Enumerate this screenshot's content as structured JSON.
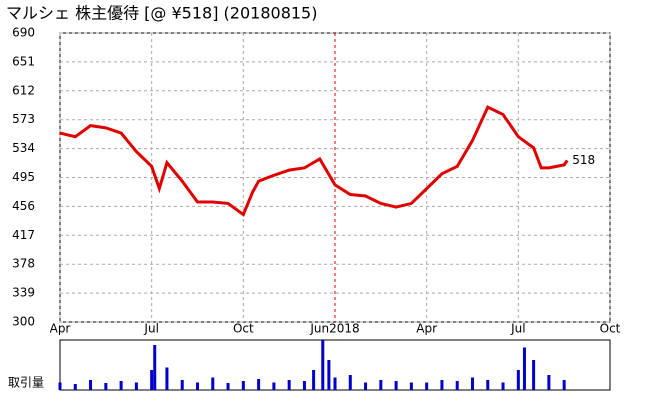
{
  "chart_data": {
    "type": "line",
    "title": "マルシェ 株主優待 [@ ¥518] (20180815)",
    "xlim": [
      0,
      18
    ],
    "xticks": [
      {
        "value": 0,
        "label": "Apr"
      },
      {
        "value": 3,
        "label": "Jul"
      },
      {
        "value": 6,
        "label": "Oct"
      },
      {
        "value": 9,
        "label": "Jun2018"
      },
      {
        "value": 12,
        "label": "Apr"
      },
      {
        "value": 15,
        "label": "Jul"
      },
      {
        "value": 18,
        "label": "Oct"
      }
    ],
    "ylim": [
      300,
      690
    ],
    "yticks": [
      300,
      339,
      378,
      417,
      456,
      495,
      534,
      573,
      612,
      651,
      690
    ],
    "grid": true,
    "series": [
      {
        "color": "#e00000",
        "x": [
          0,
          0.5,
          1,
          1.5,
          2,
          2.5,
          3,
          3.25,
          3.5,
          4,
          4.5,
          5,
          5.5,
          6,
          6.3,
          6.5,
          7,
          7.5,
          8,
          8.5,
          9,
          9.5,
          10,
          10.5,
          11,
          11.5,
          12,
          12.5,
          13,
          13.5,
          14,
          14.5,
          15,
          15.5,
          15.75,
          16,
          16.5,
          16.6
        ],
        "values": [
          555,
          550,
          565,
          562,
          555,
          530,
          510,
          480,
          515,
          490,
          462,
          462,
          460,
          445,
          475,
          490,
          498,
          505,
          508,
          520,
          485,
          472,
          470,
          460,
          455,
          460,
          480,
          500,
          510,
          545,
          590,
          580,
          550,
          535,
          508,
          508,
          512,
          518
        ],
        "value_labels": [
          null,
          null,
          null,
          null,
          null,
          null,
          null,
          null,
          null,
          null,
          null,
          null,
          null,
          null,
          null,
          null,
          null,
          null,
          null,
          null,
          null,
          null,
          null,
          null,
          null,
          null,
          null,
          null,
          null,
          null,
          null,
          null,
          null,
          null,
          null,
          null,
          null,
          "518"
        ]
      }
    ],
    "volume": {
      "label": "取引量",
      "color": "#0000cc",
      "ylim": [
        0,
        100
      ],
      "x": [
        0,
        0.5,
        1,
        1.5,
        2,
        2.5,
        3,
        3.1,
        3.5,
        4,
        4.5,
        5,
        5.5,
        6,
        6.5,
        7,
        7.5,
        8,
        8.3,
        8.6,
        8.8,
        9,
        9.5,
        10,
        10.5,
        11,
        11.5,
        12,
        12.5,
        13,
        13.5,
        14,
        14.5,
        15,
        15.2,
        15.5,
        16,
        16.5
      ],
      "values": [
        15,
        12,
        20,
        14,
        18,
        15,
        40,
        90,
        45,
        20,
        15,
        25,
        14,
        18,
        22,
        15,
        20,
        18,
        40,
        100,
        60,
        25,
        30,
        15,
        20,
        18,
        15,
        15,
        20,
        18,
        25,
        20,
        15,
        40,
        85,
        60,
        30,
        20
      ]
    }
  }
}
